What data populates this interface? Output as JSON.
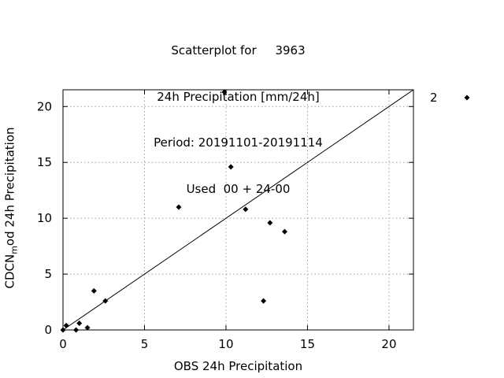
{
  "title": {
    "line1": "Scatterplot for     3963",
    "line2": "24h Precipitation [mm/24h]",
    "line3": "Period: 20191101-20191114",
    "line4": "Used  00 + 24-00"
  },
  "axes": {
    "ylabel_prefix": "CDCN",
    "ylabel_sub": "m",
    "ylabel_suffix": "od 24h Precipitation",
    "xlabel": "OBS 24h Precipitation"
  },
  "legend": {
    "label": "2",
    "placement": "top-right, outside plot"
  },
  "colors": {
    "points": "#000000",
    "grid": "#a0a0a0",
    "frame": "#000000",
    "diagonal": "#000000"
  },
  "chart_data": {
    "type": "scatter",
    "title": "Scatterplot for 3963 / 24h Precipitation [mm/24h] / Period: 20191101-20191114 / Used 00 + 24-00",
    "xlabel": "OBS 24h Precipitation",
    "ylabel": "CDCN_mod 24h Precipitation",
    "xlim": [
      0,
      21.5
    ],
    "ylim": [
      0,
      21.5
    ],
    "xticks": [
      0,
      5,
      10,
      15,
      20
    ],
    "yticks": [
      0,
      5,
      10,
      15,
      20
    ],
    "grid": true,
    "reference_line": "y = x",
    "series": [
      {
        "name": "2",
        "marker": "diamond",
        "x": [
          0.0,
          0.2,
          0.8,
          1.0,
          1.5,
          1.9,
          2.6,
          7.1,
          9.9,
          10.3,
          11.2,
          12.3,
          12.7,
          13.6
        ],
        "y": [
          0.0,
          0.4,
          0.0,
          0.6,
          0.2,
          3.5,
          2.6,
          11.0,
          21.3,
          14.6,
          10.8,
          2.6,
          9.6,
          8.8
        ]
      }
    ]
  }
}
